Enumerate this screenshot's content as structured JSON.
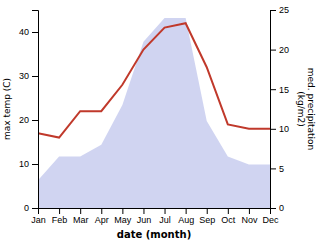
{
  "chart_data": {
    "type": "line",
    "categories": [
      "Jan",
      "Feb",
      "Mar",
      "Apr",
      "May",
      "Jun",
      "Jul",
      "Aug",
      "Sep",
      "Oct",
      "Nov",
      "Dec"
    ],
    "xlabel": "date (month)",
    "ylabel": "max temp (C)",
    "y2label": "med. precipitation\n(kg/m2)",
    "ylim": [
      0,
      45
    ],
    "yticks": [
      0,
      10,
      20,
      30,
      40
    ],
    "y2lim": [
      0,
      25
    ],
    "y2ticks": [
      0,
      5,
      10,
      15,
      20,
      25
    ],
    "series": [
      {
        "type": "area",
        "axis": "y2",
        "color": "#b0b8e8",
        "values": [
          3.5,
          6.5,
          6.5,
          8,
          13,
          21,
          24,
          24,
          11,
          6.5,
          5.5,
          5.5
        ]
      },
      {
        "type": "line",
        "color": "#c0392b",
        "values": [
          17,
          16,
          22,
          22,
          28,
          36,
          41,
          42,
          32,
          19,
          18,
          18
        ]
      }
    ]
  }
}
